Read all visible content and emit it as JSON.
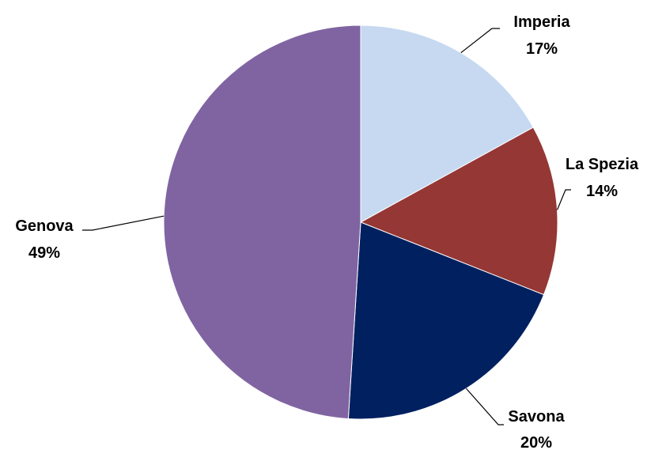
{
  "chart_data": {
    "type": "pie",
    "title": "",
    "start_angle_deg": 0,
    "direction": "clockwise",
    "slices": [
      {
        "name": "Imperia",
        "value": 17,
        "label": "17%",
        "color": "#C6D9F1"
      },
      {
        "name": "La Spezia",
        "value": 14,
        "label": "14%",
        "color": "#953735"
      },
      {
        "name": "Savona",
        "value": 20,
        "label": "20%",
        "color": "#002060"
      },
      {
        "name": "Genova",
        "value": 49,
        "label": "49%",
        "color": "#8064A2"
      }
    ]
  }
}
